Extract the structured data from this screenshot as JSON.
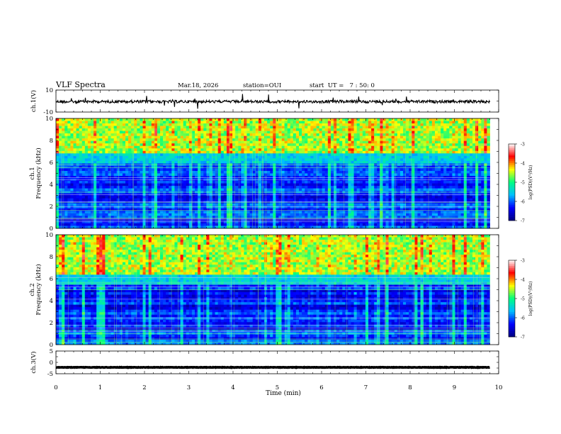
{
  "header": {
    "title": "VLF Spectra",
    "date": "Mar.18, 2026",
    "station": "station=OUI",
    "start": "start  UT =   7 : 50: 0"
  },
  "chart_data": [
    {
      "type": "line",
      "name": "ch1-waveform",
      "ylabel": "ch.1(V)",
      "ylim": [
        -10,
        10
      ],
      "y_ticks": [
        "10",
        "-10"
      ],
      "baseline": -0.5,
      "xlim": [
        0,
        10
      ],
      "data_end_min": 9.8
    },
    {
      "type": "heatmap",
      "name": "ch1-spectrogram",
      "ylabel_top": "ch.1",
      "ylabel": "Frequency  (kHz)",
      "ylim": [
        0,
        10
      ],
      "y_ticks": [
        "0",
        "2",
        "4",
        "6",
        "8",
        "10"
      ],
      "xlim": [
        0,
        10
      ],
      "data_end_min": 9.8,
      "cutoff_khz": 6.5,
      "colorbar": {
        "label": "log(PSD)(V²/Hz)",
        "range": [
          -7,
          -3
        ],
        "ticks": [
          "-3",
          "-4",
          "-5",
          "-6",
          "-7"
        ]
      }
    },
    {
      "type": "heatmap",
      "name": "ch2-spectrogram",
      "ylabel_top": "ch.2",
      "ylabel": "Frequency  (kHz)",
      "ylim": [
        0,
        10
      ],
      "y_ticks": [
        "0",
        "2",
        "4",
        "6",
        "8",
        "10"
      ],
      "xlim": [
        0,
        10
      ],
      "data_end_min": 9.8,
      "cutoff_khz": 6.0,
      "colorbar": {
        "label": "log(PSD)(V²/Hz)",
        "range": [
          -7,
          -3
        ],
        "ticks": [
          "-3",
          "-4",
          "-5",
          "-6",
          "-7"
        ]
      }
    },
    {
      "type": "line",
      "name": "ch3-waveform",
      "ylabel": "ch.3(V)",
      "ylim": [
        -5,
        5
      ],
      "y_ticks": [
        "5",
        "0",
        "-5"
      ],
      "baseline": -2.2,
      "xlim": [
        0,
        10
      ],
      "data_end_min": 9.8,
      "xlabel": "Time  (min)",
      "x_ticks": [
        "0",
        "1",
        "2",
        "3",
        "4",
        "5",
        "6",
        "7",
        "8",
        "9",
        "10"
      ]
    }
  ],
  "colors": {
    "colormap": [
      "#000080",
      "#0000ff",
      "#00bfff",
      "#00ff80",
      "#ffff00",
      "#ff0000",
      "#ffffff"
    ]
  }
}
